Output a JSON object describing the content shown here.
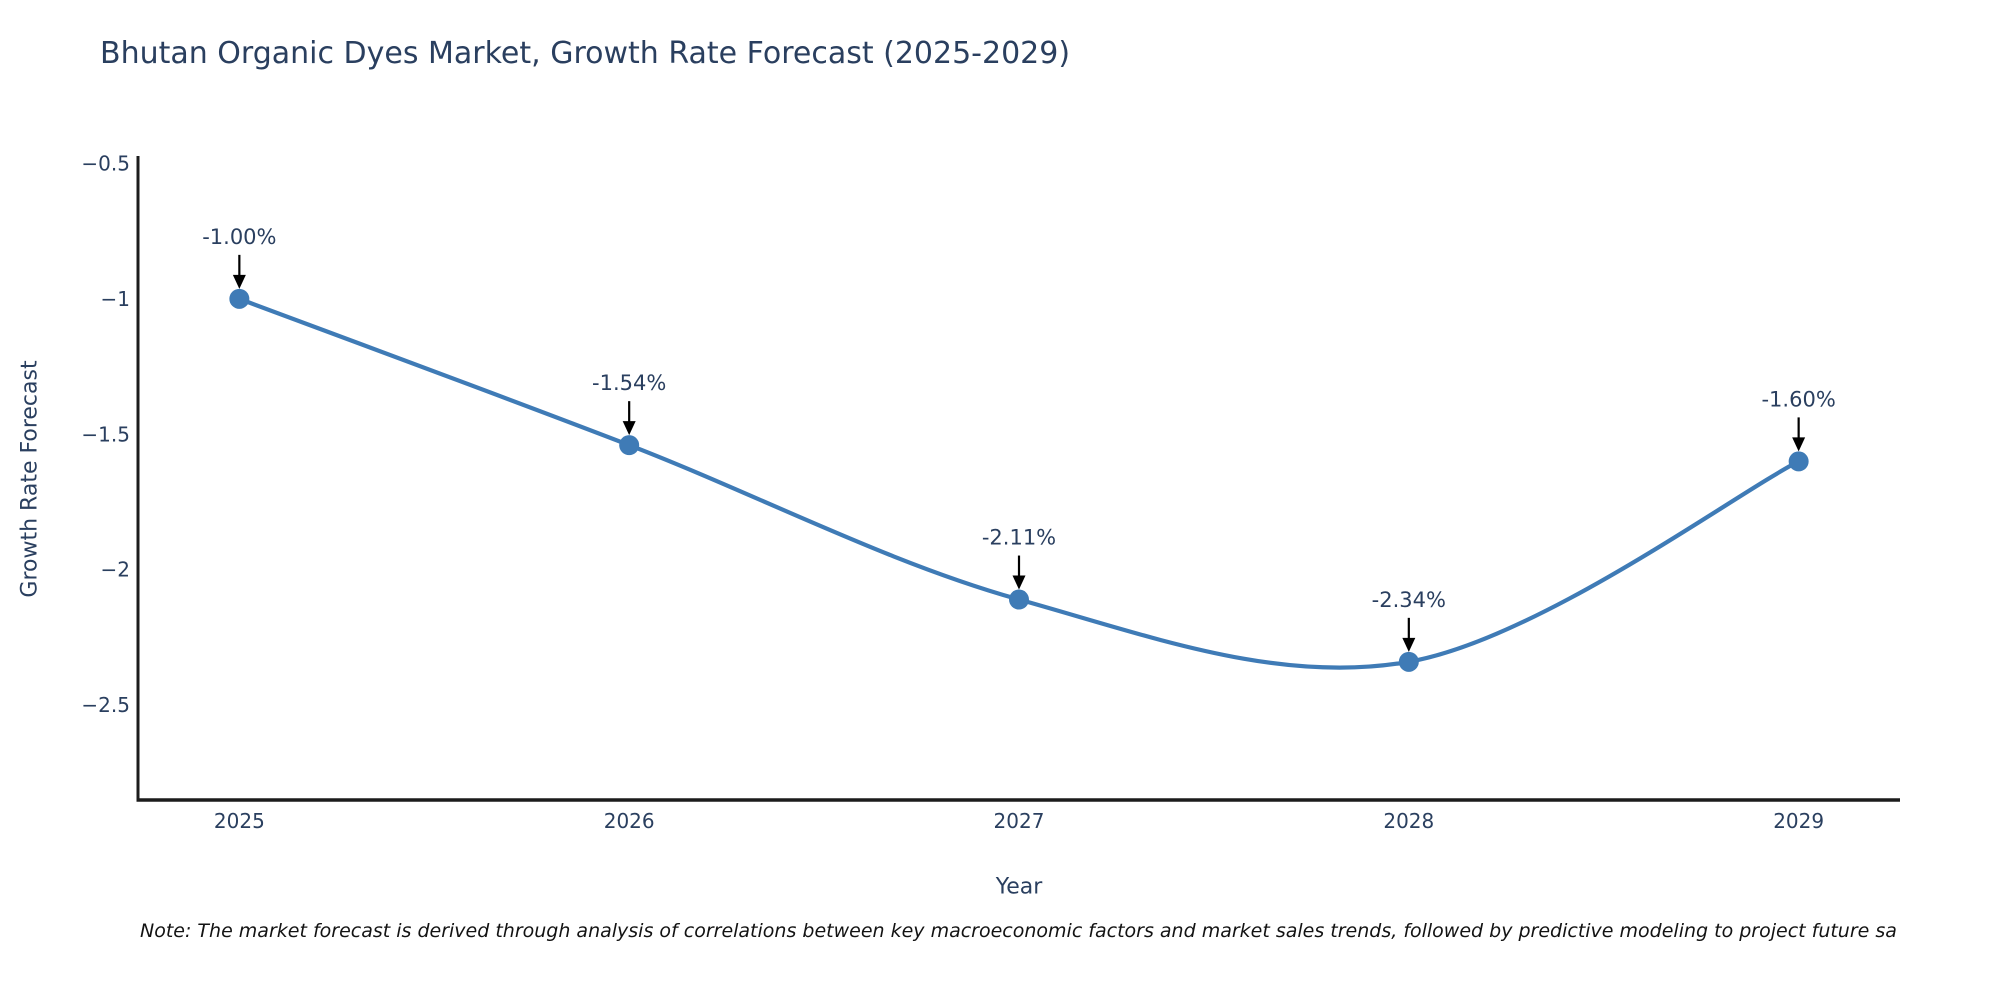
{
  "page": {
    "background": "#ffffff"
  },
  "chart_data": {
    "type": "line",
    "title": "Bhutan Organic Dyes Market, Growth Rate Forecast (2025-2029)",
    "xlabel": "Year",
    "ylabel": "Growth Rate Forecast",
    "x": [
      2025,
      2026,
      2027,
      2028,
      2029
    ],
    "values": [
      -1.0,
      -1.54,
      -2.11,
      -2.34,
      -1.6
    ],
    "point_labels": [
      "-1.00%",
      "-1.54%",
      "-2.11%",
      "-2.34%",
      "-1.60%"
    ],
    "x_tick_labels": [
      "2025",
      "2026",
      "2027",
      "2028",
      "2029"
    ],
    "y_ticks": [
      -0.5,
      -1,
      -1.5,
      -2,
      -2.5
    ],
    "y_tick_labels": [
      "−0.5",
      "−1",
      "−1.5",
      "−2",
      "−2.5"
    ],
    "xlim": [
      2024.74,
      2029.26
    ],
    "ylim": [
      -2.85,
      -0.48
    ],
    "line_shape": "spline",
    "grid": false,
    "legend_position": "none",
    "colors": {
      "line": "#3f7bb6",
      "marker": "#3f7bb6",
      "text": "#2a3f5f",
      "axis": "#1c1c1c",
      "arrow": "#000000"
    }
  },
  "note": "Note: The market forecast is derived through analysis of correlations between key macroeconomic factors and market sales trends, followed by predictive modeling to project future sa"
}
